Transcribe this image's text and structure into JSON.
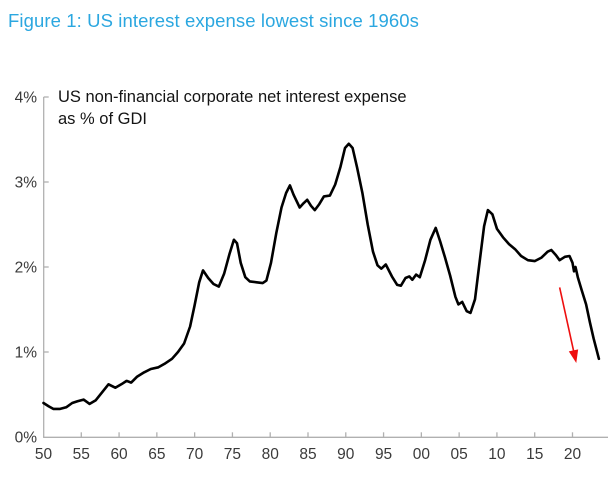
{
  "figure": {
    "title": "Figure 1: US interest expense lowest since 1960s",
    "title_color": "#2ba7e0",
    "background_color": "#ffffff"
  },
  "chart_data": {
    "type": "line",
    "title": "US non-financial corporate net interest expense as % of GDI",
    "subtitle_lines": [
      "US non-financial corporate net interest expense",
      "as % of GDI"
    ],
    "xlabel": "",
    "ylabel": "",
    "grid": false,
    "legend": "none",
    "xlim": [
      1950,
      2024.7
    ],
    "ylim": [
      0,
      4
    ],
    "x_tick_labels": [
      "50",
      "55",
      "60",
      "65",
      "70",
      "75",
      "80",
      "85",
      "90",
      "95",
      "00",
      "05",
      "10",
      "15",
      "20"
    ],
    "x_tick_years": [
      1950,
      1955,
      1960,
      1965,
      1970,
      1975,
      1980,
      1985,
      1990,
      1995,
      2000,
      2005,
      2010,
      2015,
      2020
    ],
    "y_tick_labels": [
      "0%",
      "1%",
      "2%",
      "3%",
      "4%"
    ],
    "y_tick_values": [
      0,
      1,
      2,
      3,
      4
    ],
    "axis_color": "#b0b0b0",
    "tick_label_color": "#3a3a3a",
    "series": [
      {
        "name": "US non-financial corporate net interest expense as % of GDI",
        "color": "#000000",
        "points": [
          [
            1950.0,
            0.4
          ],
          [
            1950.7,
            0.36
          ],
          [
            1951.3,
            0.33
          ],
          [
            1952.2,
            0.33
          ],
          [
            1953.0,
            0.35
          ],
          [
            1953.8,
            0.4
          ],
          [
            1954.5,
            0.42
          ],
          [
            1955.3,
            0.44
          ],
          [
            1956.1,
            0.39
          ],
          [
            1956.9,
            0.43
          ],
          [
            1957.7,
            0.52
          ],
          [
            1958.6,
            0.62
          ],
          [
            1959.5,
            0.58
          ],
          [
            1960.3,
            0.62
          ],
          [
            1961.0,
            0.66
          ],
          [
            1961.6,
            0.64
          ],
          [
            1962.4,
            0.71
          ],
          [
            1963.3,
            0.76
          ],
          [
            1964.2,
            0.8
          ],
          [
            1965.2,
            0.82
          ],
          [
            1966.0,
            0.86
          ],
          [
            1967.0,
            0.92
          ],
          [
            1967.8,
            1.0
          ],
          [
            1968.6,
            1.1
          ],
          [
            1969.4,
            1.3
          ],
          [
            1970.0,
            1.55
          ],
          [
            1970.6,
            1.82
          ],
          [
            1971.1,
            1.96
          ],
          [
            1971.8,
            1.87
          ],
          [
            1972.5,
            1.8
          ],
          [
            1973.2,
            1.77
          ],
          [
            1973.9,
            1.92
          ],
          [
            1974.6,
            2.15
          ],
          [
            1975.2,
            2.32
          ],
          [
            1975.6,
            2.28
          ],
          [
            1976.1,
            2.05
          ],
          [
            1976.7,
            1.88
          ],
          [
            1977.3,
            1.83
          ],
          [
            1978.2,
            1.82
          ],
          [
            1979.0,
            1.81
          ],
          [
            1979.5,
            1.84
          ],
          [
            1980.1,
            2.05
          ],
          [
            1980.8,
            2.4
          ],
          [
            1981.5,
            2.7
          ],
          [
            1982.1,
            2.87
          ],
          [
            1982.6,
            2.96
          ],
          [
            1983.1,
            2.85
          ],
          [
            1983.9,
            2.7
          ],
          [
            1984.4,
            2.75
          ],
          [
            1984.9,
            2.79
          ],
          [
            1985.4,
            2.72
          ],
          [
            1985.9,
            2.67
          ],
          [
            1986.5,
            2.74
          ],
          [
            1987.1,
            2.83
          ],
          [
            1987.9,
            2.84
          ],
          [
            1988.6,
            2.97
          ],
          [
            1989.3,
            3.18
          ],
          [
            1989.9,
            3.4
          ],
          [
            1990.4,
            3.45
          ],
          [
            1990.9,
            3.4
          ],
          [
            1991.5,
            3.17
          ],
          [
            1992.2,
            2.87
          ],
          [
            1992.9,
            2.5
          ],
          [
            1993.6,
            2.18
          ],
          [
            1994.2,
            2.02
          ],
          [
            1994.7,
            1.98
          ],
          [
            1995.3,
            2.03
          ],
          [
            1996.1,
            1.89
          ],
          [
            1996.8,
            1.79
          ],
          [
            1997.3,
            1.78
          ],
          [
            1997.9,
            1.87
          ],
          [
            1998.4,
            1.89
          ],
          [
            1998.8,
            1.85
          ],
          [
            1999.3,
            1.91
          ],
          [
            1999.8,
            1.88
          ],
          [
            2000.5,
            2.08
          ],
          [
            2001.2,
            2.32
          ],
          [
            2001.9,
            2.46
          ],
          [
            2002.5,
            2.3
          ],
          [
            2003.1,
            2.12
          ],
          [
            2003.8,
            1.9
          ],
          [
            2004.5,
            1.65
          ],
          [
            2004.9,
            1.56
          ],
          [
            2005.4,
            1.59
          ],
          [
            2006.0,
            1.48
          ],
          [
            2006.5,
            1.46
          ],
          [
            2007.1,
            1.62
          ],
          [
            2007.7,
            2.05
          ],
          [
            2008.3,
            2.48
          ],
          [
            2008.8,
            2.67
          ],
          [
            2009.4,
            2.62
          ],
          [
            2010.0,
            2.45
          ],
          [
            2010.8,
            2.35
          ],
          [
            2011.6,
            2.27
          ],
          [
            2012.4,
            2.21
          ],
          [
            2013.2,
            2.13
          ],
          [
            2014.1,
            2.08
          ],
          [
            2015.0,
            2.07
          ],
          [
            2015.9,
            2.11
          ],
          [
            2016.7,
            2.18
          ],
          [
            2017.2,
            2.2
          ],
          [
            2017.8,
            2.14
          ],
          [
            2018.3,
            2.08
          ],
          [
            2019.0,
            2.12
          ],
          [
            2019.6,
            2.13
          ],
          [
            2020.0,
            2.05
          ],
          [
            2020.2,
            1.95
          ],
          [
            2020.4,
            2.0
          ],
          [
            2020.7,
            1.88
          ],
          [
            2021.2,
            1.73
          ],
          [
            2021.8,
            1.56
          ],
          [
            2022.3,
            1.35
          ],
          [
            2022.8,
            1.16
          ],
          [
            2023.2,
            1.02
          ],
          [
            2023.5,
            0.92
          ]
        ]
      }
    ],
    "annotation_arrow": {
      "description": "red arrow highlighting sharp decline at end of series",
      "from": [
        2018.3,
        1.76
      ],
      "to": [
        2020.5,
        0.87
      ],
      "color": "#ee0f0f"
    }
  }
}
